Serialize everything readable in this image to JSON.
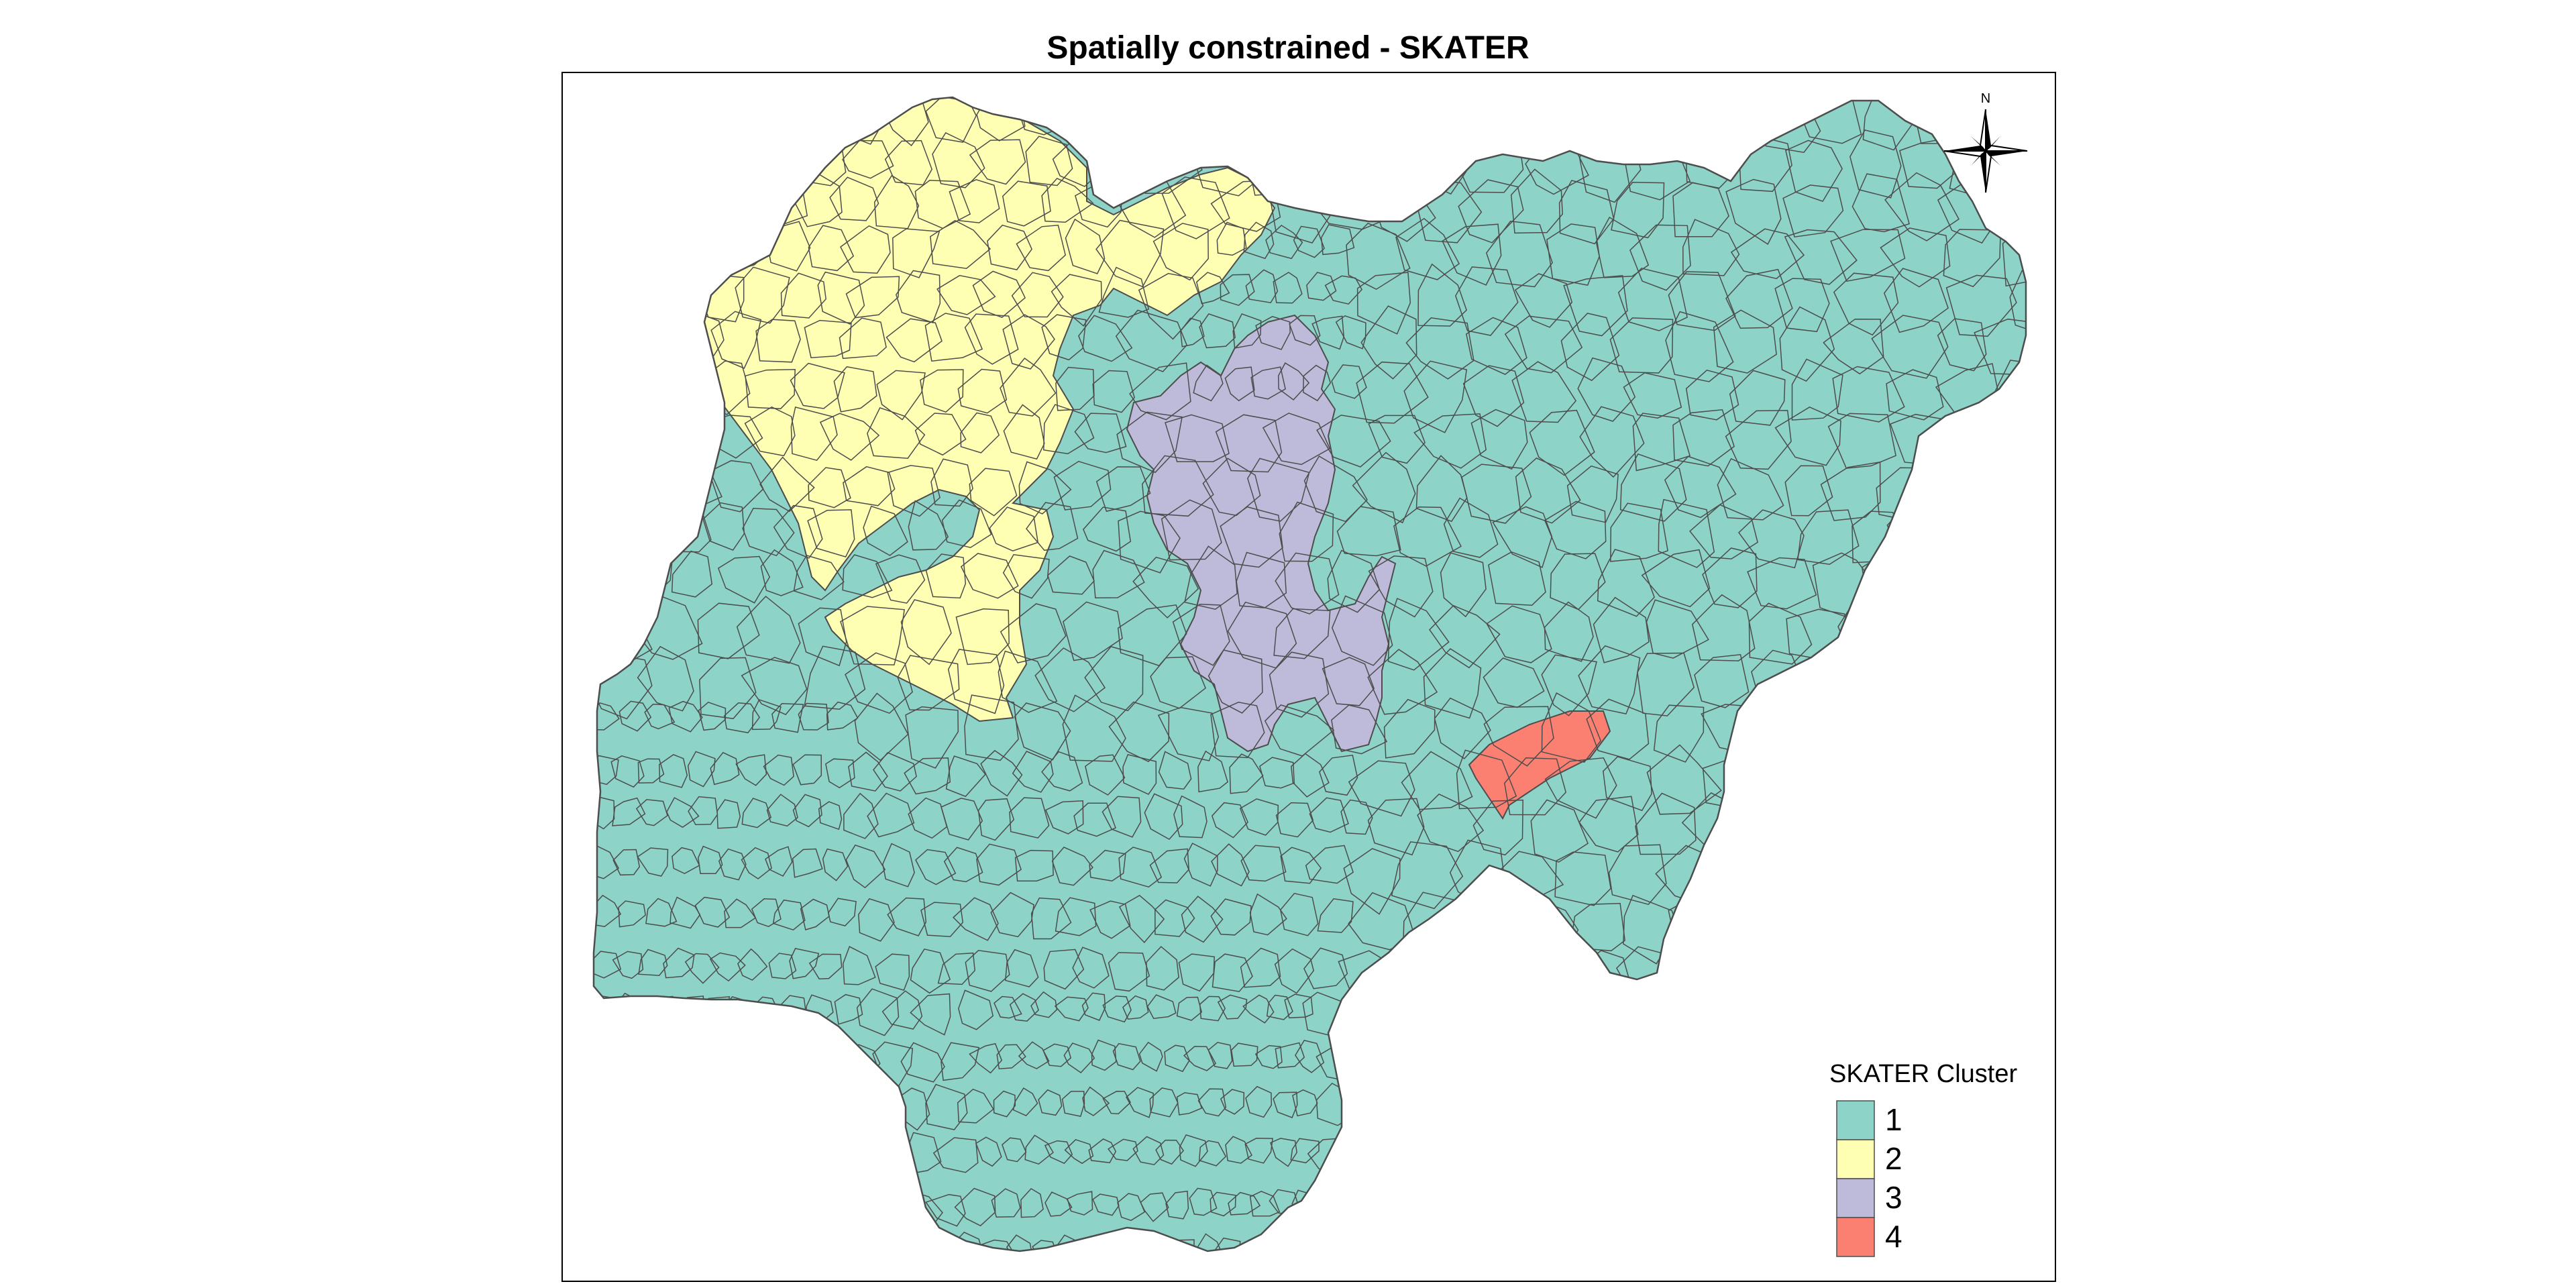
{
  "map": {
    "title": "Spatially constrained - SKATER"
  },
  "north_arrow": {
    "label": "N",
    "icon": "compass-rose-icon"
  },
  "legend": {
    "title": "SKATER Cluster",
    "placement": "bottom-right",
    "items": [
      {
        "label": "1",
        "color": "#8dd3c7"
      },
      {
        "label": "2",
        "color": "#ffffb3"
      },
      {
        "label": "3",
        "color": "#bebada"
      },
      {
        "label": "4",
        "color": "#fb8072"
      }
    ]
  },
  "style": {
    "border_color": "#4d4d4d",
    "frame_color": "#000000",
    "background": "#ffffff"
  }
}
